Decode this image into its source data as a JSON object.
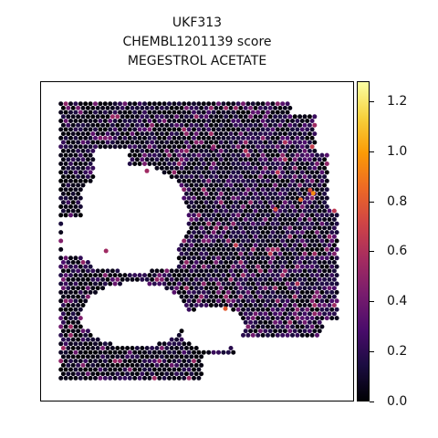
{
  "chart": {
    "title_lines": [
      "UKF313",
      "CHEMBL1201139 score",
      "MEGESTROL ACETATE"
    ]
  },
  "chart_data": {
    "type": "scatter",
    "title": "UKF313\nCHEMBL1201139 score\nMEGESTROL ACETATE",
    "xlabel": "",
    "ylabel": "",
    "colorbar": {
      "colormap": "inferno",
      "range": [
        0.0,
        1.28
      ],
      "ticks": [
        0.0,
        0.2,
        0.4,
        0.6,
        0.8,
        1.0,
        1.2
      ],
      "tick_labels": [
        "0.0",
        "0.2",
        "0.4",
        "0.6",
        "0.8",
        "1.0",
        "1.2"
      ]
    },
    "description_of_values": "Spatial spot map; most spots near 0.0-0.2 (black/dark purple), scattered spots 0.3-0.6, a few up to ~0.8-1.2",
    "highlight_points": [
      {
        "x": 0.83,
        "y": 0.37,
        "value": 0.85
      },
      {
        "x": 0.87,
        "y": 0.35,
        "value": 0.95
      },
      {
        "x": 0.75,
        "y": 0.4,
        "value": 0.75
      },
      {
        "x": 0.59,
        "y": 0.71,
        "value": 0.8
      },
      {
        "x": 0.21,
        "y": 0.53,
        "value": 0.55
      },
      {
        "x": 0.86,
        "y": 0.34,
        "value": 0.75
      },
      {
        "x": 0.34,
        "y": 0.28,
        "value": 0.55
      },
      {
        "x": 0.55,
        "y": 0.21,
        "value": 0.45
      }
    ],
    "colors": {
      "cmap_stops": [
        "#000004",
        "#1b0c41",
        "#4a0c6b",
        "#781c6d",
        "#a52c60",
        "#cf4446",
        "#ed6925",
        "#fb9b06",
        "#f7d13d",
        "#fcffa4"
      ]
    }
  }
}
